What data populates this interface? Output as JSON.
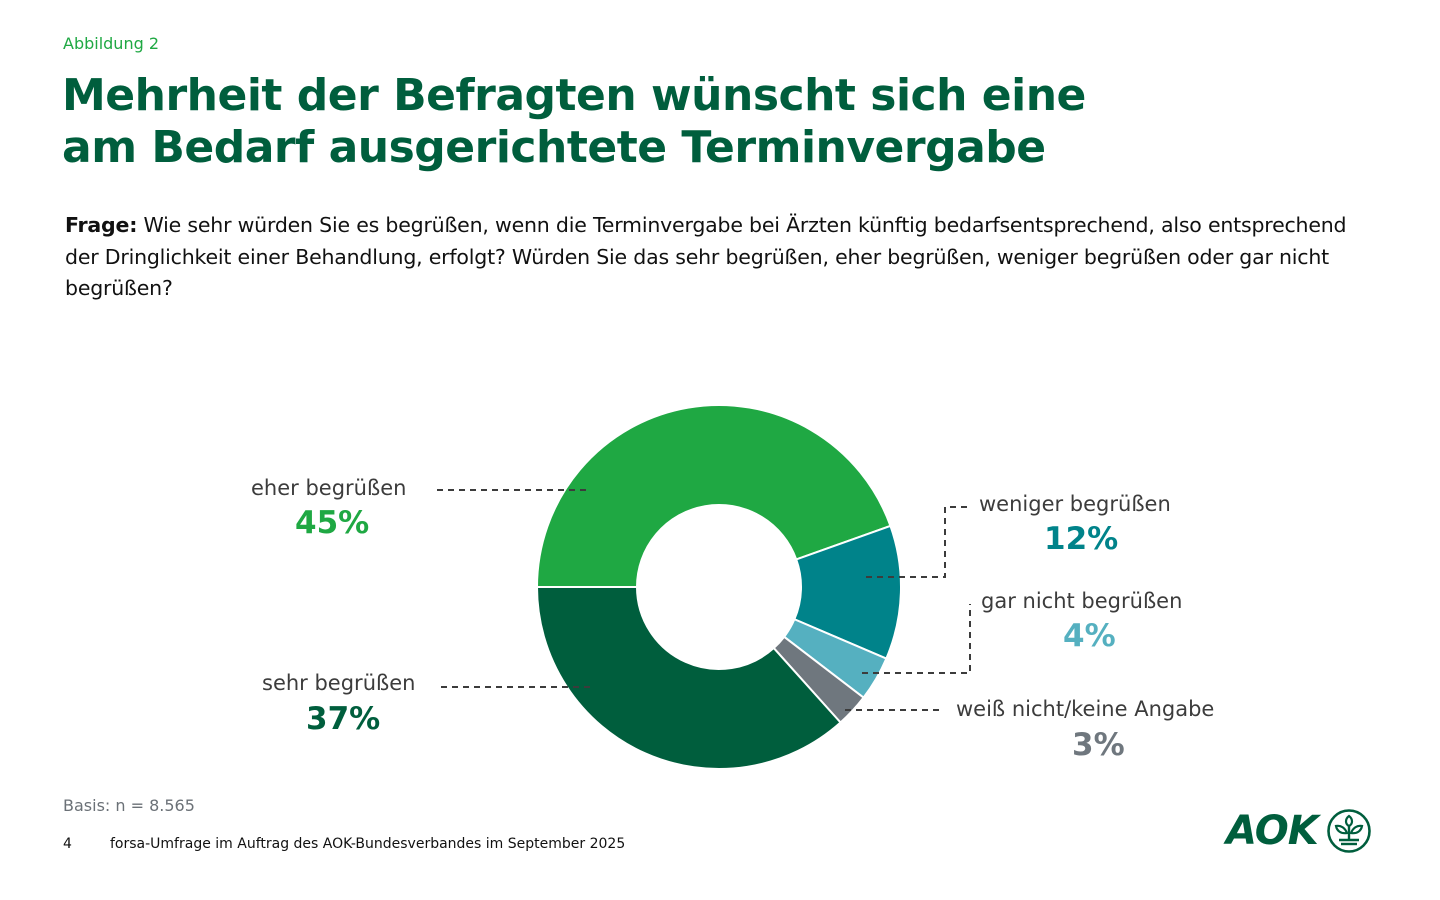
{
  "figure_label": "Abbildung 2",
  "title_lines": [
    "Mehrheit der Befragten wünscht sich eine",
    "am Bedarf ausgerichtete Terminvergabe"
  ],
  "question": {
    "prefix": "Frage:",
    "text": " Wie sehr würden Sie es begrüßen, wenn die Terminvergabe bei Ärzten künftig bedarfsentsprechend, also entsprechend der Dringlichkeit einer Behandlung, erfolgt? Würden Sie das sehr begrüßen, eher begrüßen, weniger begrüßen oder gar nicht begrüßen?"
  },
  "chart_data": {
    "type": "pie",
    "variant": "donut",
    "title": "Mehrheit der Befragten wünscht sich eine am Bedarf ausgerichtete Terminvergabe",
    "unit": "%",
    "start": "9 o'clock, clockwise",
    "slices": [
      {
        "label": "eher begrüßen",
        "value": 45,
        "display": "45%",
        "color": "#1fa843"
      },
      {
        "label": "weniger begrüßen",
        "value": 12,
        "display": "12%",
        "color": "#00838a"
      },
      {
        "label": "gar nicht begrüßen",
        "value": 4,
        "display": "4%",
        "color": "#55b0c0"
      },
      {
        "label": "weiß nicht/keine Angabe",
        "value": 3,
        "display": "3%",
        "color": "#6f777e"
      },
      {
        "label": "sehr begrüßen",
        "value": 37,
        "display": "37%",
        "color": "#005e3d"
      }
    ]
  },
  "footer": {
    "basis": "Basis: n = 8.565",
    "page_number": "4",
    "source": "forsa-Umfrage im Auftrag des AOK-Bundesverbandes im September 2025"
  },
  "logo": {
    "text": "AOK",
    "icon": "aok-tree-icon",
    "color": "#005e3d"
  }
}
